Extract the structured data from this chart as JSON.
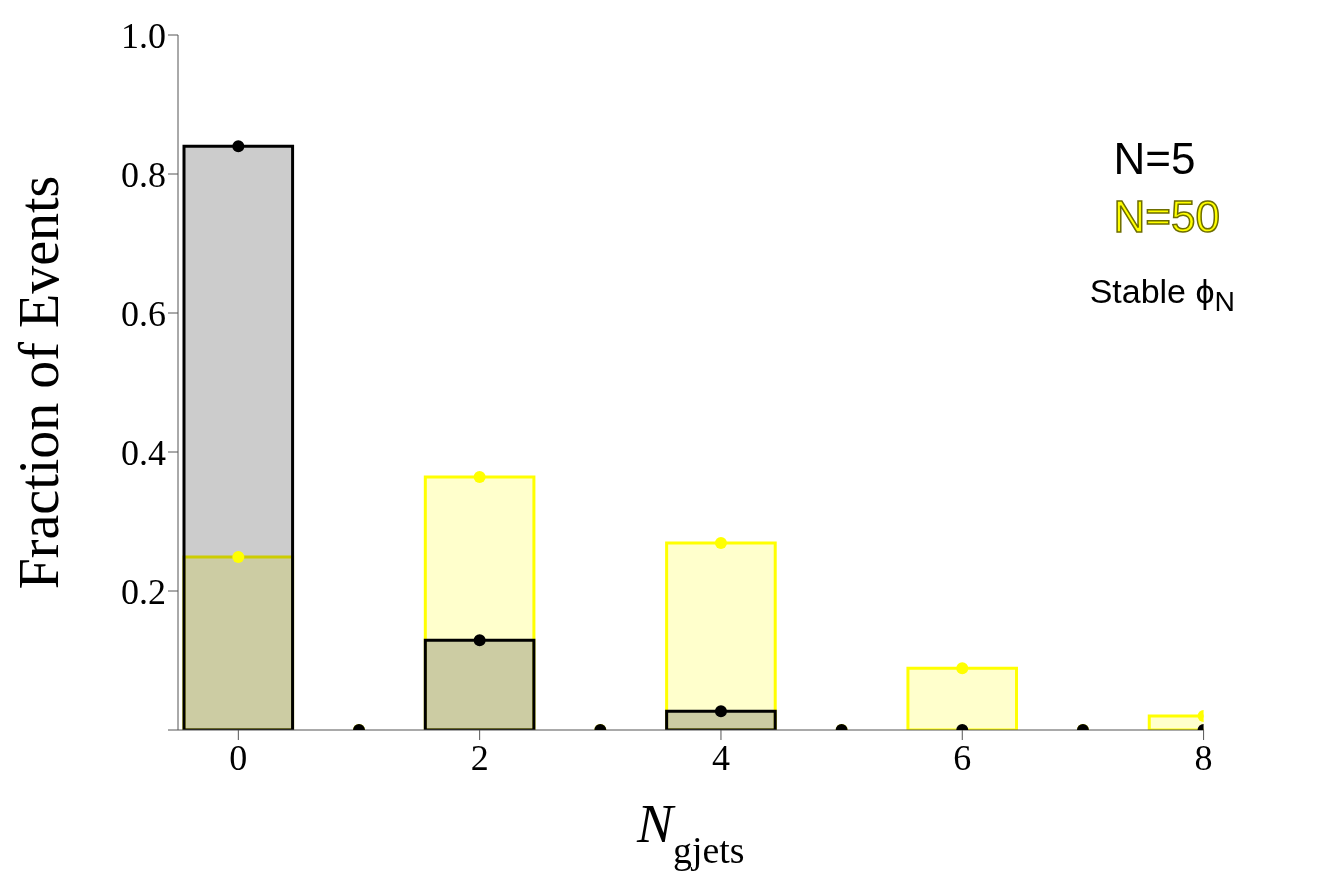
{
  "chart_data": {
    "type": "bar",
    "xlabel": "N$_{gjets}$",
    "ylabel": "Fraction of Events",
    "x": [
      0,
      1,
      2,
      3,
      4,
      5,
      6,
      7,
      8
    ],
    "series": [
      {
        "name": "N=5",
        "color": "#000000",
        "values": [
          0.84,
          0,
          0.129,
          0,
          0.027,
          0,
          0,
          0,
          0
        ]
      },
      {
        "name": "N=50",
        "color": "#ffff00",
        "values": [
          0.249,
          0,
          0.364,
          0,
          0.269,
          0,
          0.089,
          0,
          0.02
        ]
      },
      {
        "type": "scatter",
        "color": "#000000",
        "values": [
          0.84,
          0,
          0.129,
          0,
          0.027,
          0,
          0,
          0,
          0
        ]
      },
      {
        "type": "scatter",
        "color": "#ffff00",
        "values": [
          0.249,
          0,
          0.364,
          0,
          0.269,
          0,
          0.089,
          0,
          0.02
        ]
      }
    ],
    "xlim": [
      -0.5,
      8
    ],
    "xticks": [
      0,
      2,
      4,
      6,
      8
    ],
    "ylim": [
      0,
      1
    ],
    "yticks": [
      {
        "value": 0,
        "label": null
      },
      0.2,
      0.4,
      0.6,
      0.8,
      "1.0"
    ],
    "marker": "circle",
    "legend": "top right",
    "grid": false,
    "annotations": [
      "Stable ϕ$_{N}$"
    ]
  }
}
